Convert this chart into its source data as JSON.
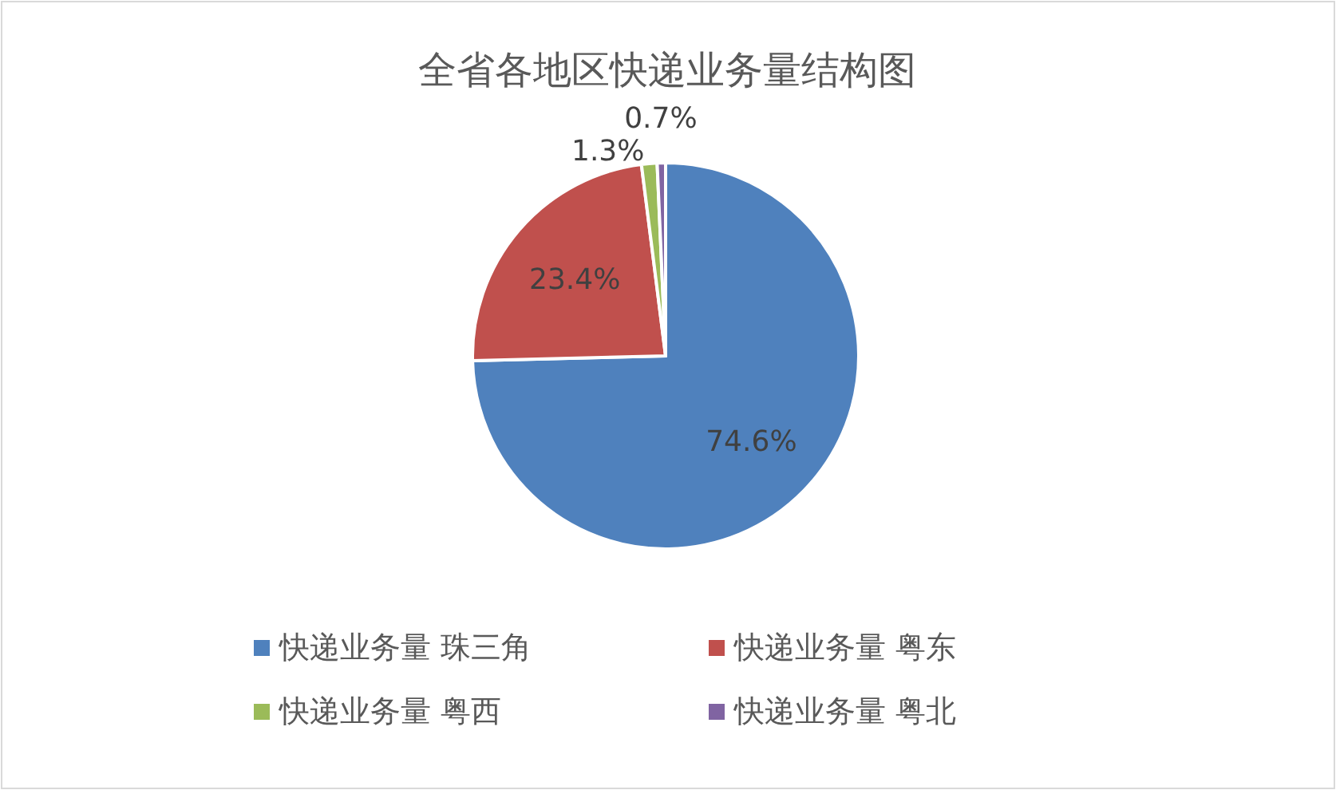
{
  "chart_data": {
    "type": "pie",
    "title": "全省各地区快递业务量结构图",
    "categories": [
      "快递业务量 珠三角",
      "快递业务量 粤东",
      "快递业务量 粤西",
      "快递业务量 粤北"
    ],
    "values": [
      74.6,
      23.4,
      1.3,
      0.7
    ],
    "value_labels": [
      "74.6%",
      "23.4%",
      "1.3%",
      "0.7%"
    ],
    "colors": [
      "#4f81bd",
      "#c0504d",
      "#9bbb59",
      "#8064a2"
    ],
    "legend": "bottom"
  }
}
